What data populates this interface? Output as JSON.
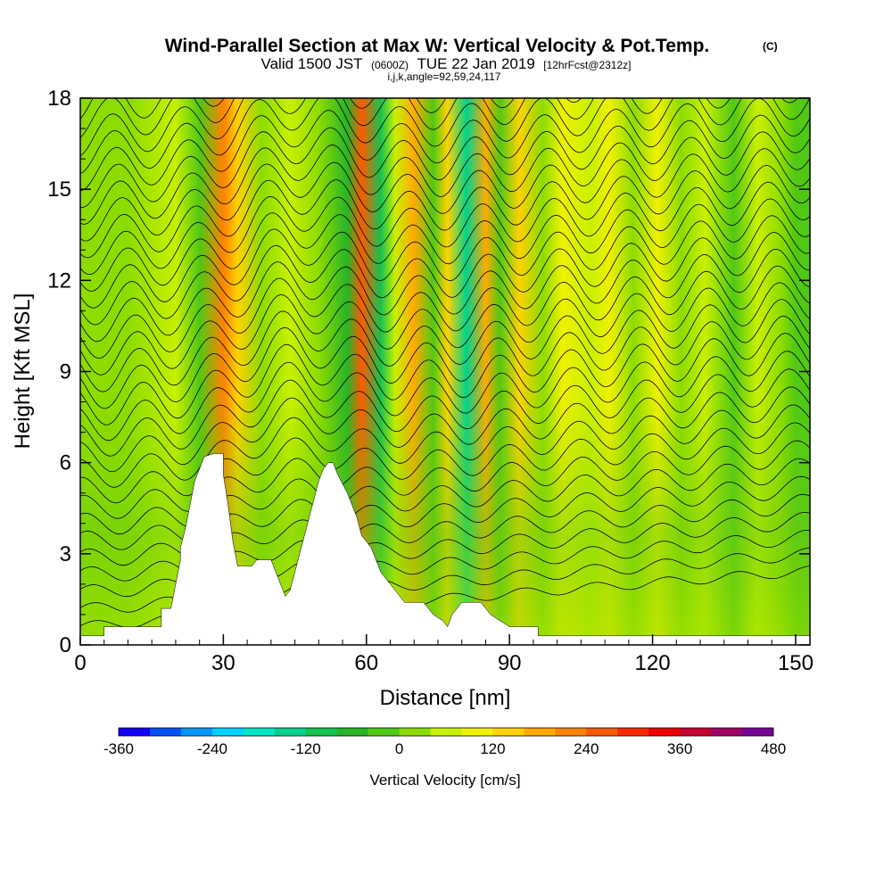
{
  "chart_data": {
    "type": "heatmap",
    "title": "Wind-Parallel Section at Max W: Vertical Velocity & Pot.Temp.",
    "copyright": "(C)",
    "subtitle_parts": {
      "valid": "Valid 1500 JST",
      "utc": "(0600Z)",
      "date": "TUE 22 Jan 2019",
      "forecast": "[12hrFcst@2312z]"
    },
    "subtitle2": "i,j,k,angle=92,59,24,117",
    "xlabel": "Distance [nm]",
    "ylabel": "Height [Kft MSL]",
    "xlim": [
      0,
      153
    ],
    "ylim": [
      0,
      18
    ],
    "x_ticks": [
      0,
      30,
      60,
      90,
      120,
      150
    ],
    "y_ticks": [
      0,
      3,
      6,
      9,
      12,
      15,
      18
    ],
    "colorbar": {
      "label": "Vertical Velocity [cm/s]",
      "min": -360,
      "max": 480,
      "step": 40,
      "tick_labels": [
        "-360",
        "-240",
        "-120",
        "0",
        "120",
        "240",
        "360",
        "480"
      ],
      "colors": [
        "#1400ff",
        "#0050ff",
        "#0096ff",
        "#00d2ff",
        "#00e6c8",
        "#00d28c",
        "#14c350",
        "#28b428",
        "#50c814",
        "#8cdc00",
        "#c8f000",
        "#f0f000",
        "#ffd200",
        "#ffaa00",
        "#ff8200",
        "#ff5a00",
        "#ff2800",
        "#f00000",
        "#c80032",
        "#a00064",
        "#780096"
      ]
    },
    "terrain_kft": [
      [
        0,
        0.3
      ],
      [
        5,
        0.3
      ],
      [
        5,
        0.6
      ],
      [
        17,
        0.6
      ],
      [
        17,
        1.2
      ],
      [
        19,
        1.2
      ],
      [
        20,
        2.0
      ],
      [
        21,
        2.8
      ],
      [
        21,
        3.2
      ],
      [
        22,
        3.8
      ],
      [
        23,
        4.6
      ],
      [
        24,
        5.4
      ],
      [
        25,
        5.8
      ],
      [
        26,
        6.2
      ],
      [
        28,
        6.3
      ],
      [
        30,
        6.3
      ],
      [
        30,
        5.6
      ],
      [
        31,
        4.6
      ],
      [
        32,
        3.4
      ],
      [
        33,
        2.6
      ],
      [
        36,
        2.6
      ],
      [
        37,
        2.8
      ],
      [
        40,
        2.8
      ],
      [
        41,
        2.4
      ],
      [
        42,
        2.0
      ],
      [
        43,
        1.6
      ],
      [
        44,
        1.8
      ],
      [
        45,
        2.4
      ],
      [
        46,
        3.0
      ],
      [
        47,
        3.6
      ],
      [
        48,
        4.2
      ],
      [
        49,
        4.8
      ],
      [
        50,
        5.4
      ],
      [
        51,
        5.8
      ],
      [
        52,
        6.0
      ],
      [
        53,
        6.0
      ],
      [
        54,
        5.6
      ],
      [
        56,
        5.0
      ],
      [
        57,
        4.6
      ],
      [
        58,
        4.2
      ],
      [
        59,
        3.6
      ],
      [
        61,
        3.2
      ],
      [
        62,
        2.8
      ],
      [
        63,
        2.4
      ],
      [
        65,
        2.0
      ],
      [
        67,
        1.6
      ],
      [
        68,
        1.4
      ],
      [
        72,
        1.4
      ],
      [
        73,
        1.2
      ],
      [
        74,
        1.0
      ],
      [
        76,
        0.8
      ],
      [
        77,
        0.6
      ],
      [
        78,
        1.0
      ],
      [
        80,
        1.4
      ],
      [
        84,
        1.4
      ],
      [
        86,
        1.0
      ],
      [
        88,
        0.8
      ],
      [
        90,
        0.6
      ],
      [
        96,
        0.6
      ],
      [
        96,
        0.3
      ],
      [
        153,
        0.3
      ]
    ],
    "w_columns": [
      {
        "x": 10,
        "w": 0
      },
      {
        "x": 20,
        "w": 60
      },
      {
        "x": 25,
        "w": -30
      },
      {
        "x": 30,
        "w": 220
      },
      {
        "x": 33,
        "w": 120
      },
      {
        "x": 38,
        "w": 0
      },
      {
        "x": 44,
        "w": 60
      },
      {
        "x": 50,
        "w": 30
      },
      {
        "x": 56,
        "w": -60
      },
      {
        "x": 59,
        "w": 260
      },
      {
        "x": 63,
        "w": -120
      },
      {
        "x": 66,
        "w": 40
      },
      {
        "x": 70,
        "w": 180
      },
      {
        "x": 74,
        "w": -40
      },
      {
        "x": 77,
        "w": 150
      },
      {
        "x": 81,
        "w": -150
      },
      {
        "x": 85,
        "w": 170
      },
      {
        "x": 88,
        "w": -30
      },
      {
        "x": 92,
        "w": 120
      },
      {
        "x": 97,
        "w": 0
      },
      {
        "x": 101,
        "w": 100
      },
      {
        "x": 107,
        "w": 40
      },
      {
        "x": 111,
        "w": 110
      },
      {
        "x": 116,
        "w": 30
      },
      {
        "x": 121,
        "w": 80
      },
      {
        "x": 126,
        "w": 10
      },
      {
        "x": 131,
        "w": 60
      },
      {
        "x": 137,
        "w": -10
      },
      {
        "x": 142,
        "w": 50
      },
      {
        "x": 147,
        "w": 20
      },
      {
        "x": 150,
        "w": -40
      }
    ],
    "theta_contours": 32
  }
}
